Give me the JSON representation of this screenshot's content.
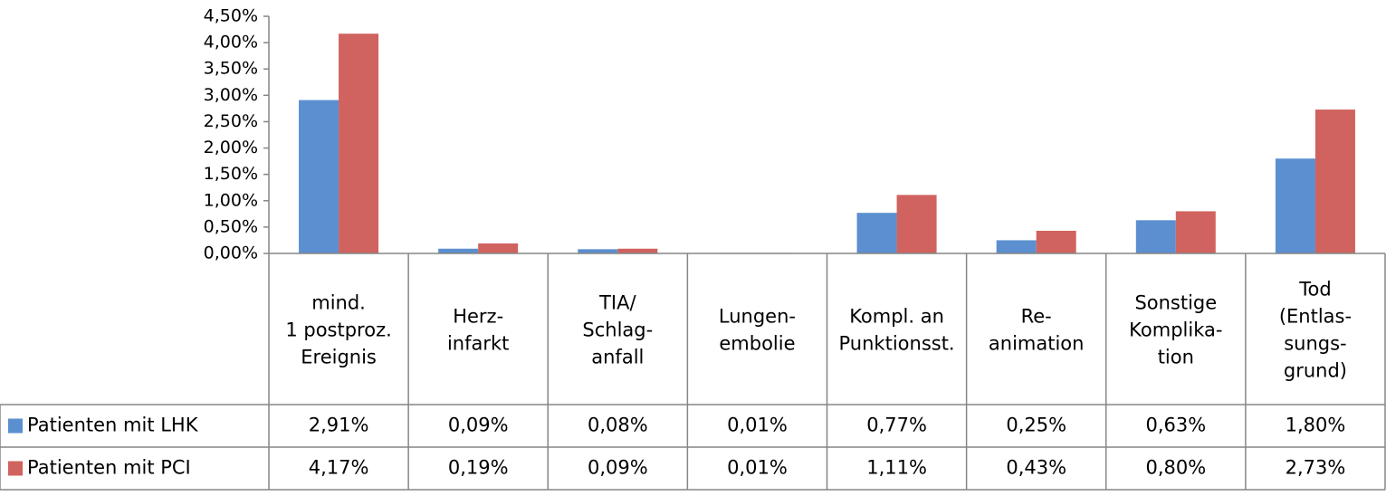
{
  "chart_data": {
    "type": "bar",
    "categories": [
      "mind.\n1 postproz.\nEreignis",
      "Herz-\ninfarkt",
      "TIA/\nSchlag-\nanfall",
      "Lungen-\nembolie",
      "Kompl. an\nPunktionsst.",
      "Re-\nanimation",
      "Sonstige\nKomplika-\ntion",
      "Tod\n(Entlas-\nsungs-\ngrund)"
    ],
    "series": [
      {
        "name": "Patienten mit LHK",
        "color": "#5b8fd0",
        "values": [
          2.91,
          0.09,
          0.08,
          0.01,
          0.77,
          0.25,
          0.63,
          1.8
        ],
        "value_labels": [
          "2,91%",
          "0,09%",
          "0,08%",
          "0,01%",
          "0,77%",
          "0,25%",
          "0,63%",
          "1,80%"
        ]
      },
      {
        "name": "Patienten mit PCI",
        "color": "#d0635f",
        "values": [
          4.17,
          0.19,
          0.09,
          0.01,
          1.11,
          0.43,
          0.8,
          2.73
        ],
        "value_labels": [
          "4,17%",
          "0,19%",
          "0,09%",
          "0,01%",
          "1,11%",
          "0,43%",
          "0,80%",
          "2,73%"
        ]
      }
    ],
    "ylim": [
      0,
      4.5
    ],
    "yticks": [
      {
        "value": 0,
        "label": "0,00%"
      },
      {
        "value": 0.5,
        "label": "0,50%"
      },
      {
        "value": 1,
        "label": "1,00%"
      },
      {
        "value": 1.5,
        "label": "1,50%"
      },
      {
        "value": 2,
        "label": "2,00%"
      },
      {
        "value": 2.5,
        "label": "2,50%"
      },
      {
        "value": 3,
        "label": "3,00%"
      },
      {
        "value": 3.5,
        "label": "3,50%"
      },
      {
        "value": 4,
        "label": "4,00%"
      },
      {
        "value": 4.5,
        "label": "4,50%"
      }
    ],
    "grid": false
  }
}
